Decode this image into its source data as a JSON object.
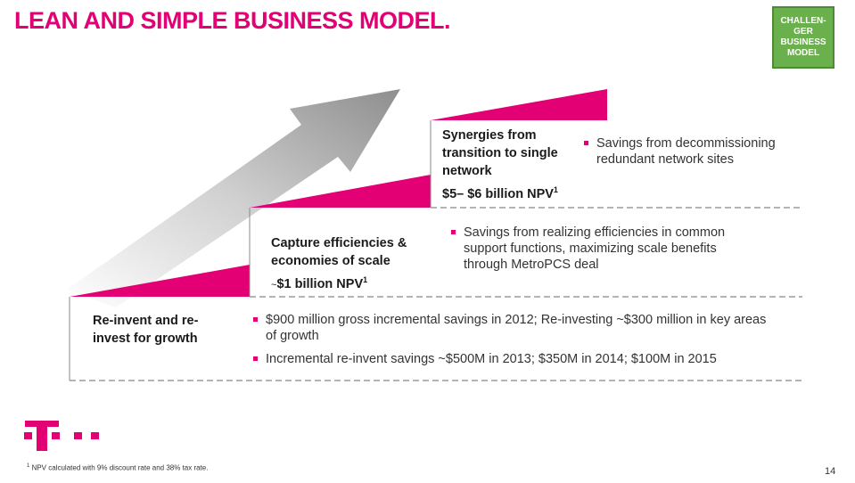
{
  "title": "LEAN AND SIMPLE BUSINESS MODEL.",
  "badge": {
    "text": "CHALLEN-GER BUSINESS MODEL",
    "color": "#6ab04c"
  },
  "brand_color": "#e20074",
  "levels": [
    {
      "heading": "Re-invent and re-invest for growth",
      "bullets": [
        "$900 million gross incremental savings in 2012; Re-investing ~$300 million in key areas of growth",
        "Incremental re-invent savings ~$500M in 2013;  $350M in 2014;  $100M in 2015"
      ]
    },
    {
      "heading": "Capture efficiencies & economies of scale",
      "npv_prefix": "~",
      "npv": "$1 billion NPV",
      "npv_sup": "1",
      "bullets": [
        "Savings from realizing efficiencies in common support functions, maximizing scale benefits through MetroPCS deal"
      ]
    },
    {
      "heading": "Synergies from transition to single network",
      "npv": "$5– $6 billion NPV",
      "npv_sup": "1",
      "bullets": [
        "Savings from decommissioning redundant network sites"
      ]
    }
  ],
  "footnote": {
    "sup": "1",
    "text": " NPV calculated with 9% discount rate and 38% tax rate."
  },
  "page_number": "14"
}
